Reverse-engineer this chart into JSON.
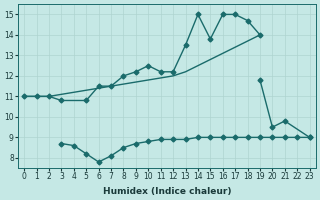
{
  "xlabel": "Humidex (Indice chaleur)",
  "background_color": "#c5e8e5",
  "grid_color": "#afd4d0",
  "line_color": "#1a6b6b",
  "ylim": [
    7.5,
    15.5
  ],
  "xlim": [
    -0.5,
    23.5
  ],
  "yticks": [
    8,
    9,
    10,
    11,
    12,
    13,
    14,
    15
  ],
  "xticks": [
    0,
    1,
    2,
    3,
    4,
    5,
    6,
    7,
    8,
    9,
    10,
    11,
    12,
    13,
    14,
    15,
    16,
    17,
    18,
    19,
    20,
    21,
    22,
    23
  ],
  "lines": [
    {
      "x": [
        0,
        1,
        2,
        3,
        5,
        6,
        7,
        8,
        9,
        10,
        11,
        12,
        13,
        14,
        15,
        16,
        17,
        18,
        19
      ],
      "y": [
        11,
        11,
        11,
        10.8,
        10.8,
        11.5,
        11.5,
        12.0,
        12.2,
        12.5,
        12.2,
        12.2,
        13.5,
        15.0,
        13.8,
        15.0,
        15.0,
        14.7,
        14.0
      ],
      "marker": "D",
      "markersize": 2.5,
      "linewidth": 1.0
    },
    {
      "x": [
        0,
        1,
        2,
        3,
        4,
        5,
        6,
        7,
        8,
        9,
        10,
        11,
        12,
        13,
        14,
        15,
        16,
        17,
        18,
        19
      ],
      "y": [
        11,
        11,
        11.0,
        11.1,
        11.2,
        11.3,
        11.4,
        11.5,
        11.6,
        11.7,
        11.8,
        11.9,
        12.0,
        12.2,
        12.5,
        12.8,
        13.1,
        13.4,
        13.7,
        14.0
      ],
      "marker": null,
      "markersize": 0,
      "linewidth": 1.0
    },
    {
      "x": [
        19,
        20,
        21,
        23
      ],
      "y": [
        11.8,
        9.5,
        9.8,
        9.0
      ],
      "marker": "D",
      "markersize": 2.5,
      "linewidth": 1.0
    },
    {
      "x": [
        3,
        4,
        5,
        6,
        7,
        8,
        9,
        10,
        11,
        12,
        13,
        14,
        15,
        16,
        17,
        18,
        19,
        20,
        21,
        22,
        23
      ],
      "y": [
        8.7,
        8.6,
        8.2,
        7.8,
        8.1,
        8.5,
        8.7,
        8.8,
        8.9,
        8.9,
        8.9,
        9.0,
        9.0,
        9.0,
        9.0,
        9.0,
        9.0,
        9.0,
        9.0,
        9.0,
        9.0
      ],
      "marker": "D",
      "markersize": 2.5,
      "linewidth": 1.0
    }
  ]
}
